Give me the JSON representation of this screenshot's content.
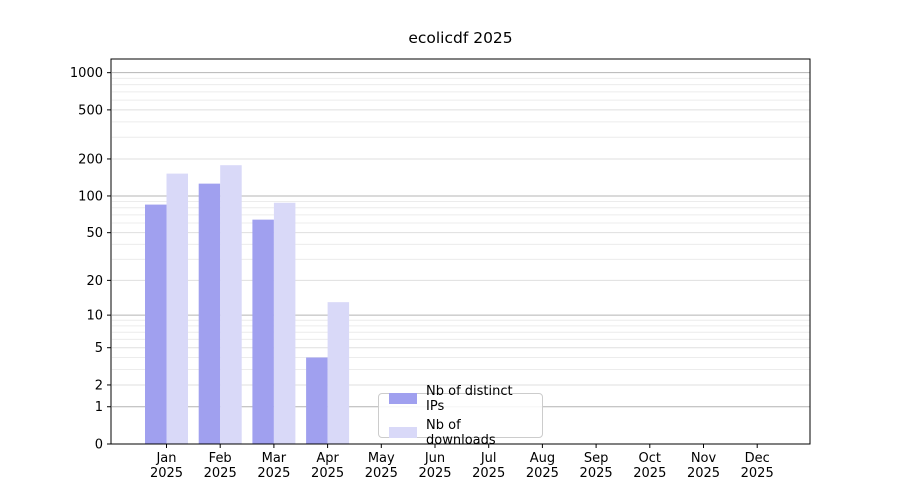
{
  "chart_data": {
    "type": "bar",
    "title": "ecolicdf 2025",
    "categories": [
      "Jan",
      "Feb",
      "Mar",
      "Apr",
      "May",
      "Jun",
      "Jul",
      "Aug",
      "Sep",
      "Oct",
      "Nov",
      "Dec"
    ],
    "x_year_label": "2025",
    "series": [
      {
        "name": "Nb of distinct IPs",
        "color": "#a0a0ef",
        "values": [
          85,
          126,
          64,
          4,
          0,
          0,
          0,
          0,
          0,
          0,
          0,
          0
        ]
      },
      {
        "name": "Nb of downloads",
        "color": "#d9d9f8",
        "values": [
          152,
          178,
          88,
          13,
          0,
          0,
          0,
          0,
          0,
          0,
          0,
          0
        ]
      }
    ],
    "y_ticks": [
      0,
      1,
      2,
      5,
      10,
      20,
      50,
      100,
      200,
      500,
      1000
    ],
    "y_scale": "log10(1+v)",
    "ylim": [
      0,
      1290
    ],
    "grid": "major and minor horizontal gridlines",
    "legend_position": "lower center"
  },
  "colors": {
    "background": "#ffffff",
    "axis": "#000000",
    "text": "#000000",
    "grid_decade": "#b4b4b4",
    "grid_labeled_minor": "#dfdfdf",
    "grid_minor": "#ececec",
    "legend_border": "#cccccc"
  }
}
